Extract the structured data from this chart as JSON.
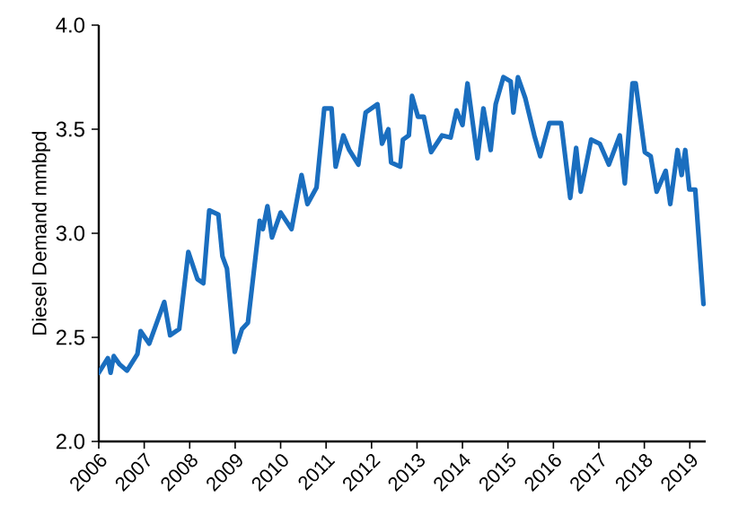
{
  "chart_data": {
    "type": "line",
    "ylabel": "Diesel Demand mmbpd",
    "x": [
      2006.0,
      2006.2,
      2006.26,
      2006.33,
      2006.46,
      2006.62,
      2006.85,
      2006.92,
      2007.11,
      2007.44,
      2007.57,
      2007.77,
      2007.97,
      2008.17,
      2008.3,
      2008.43,
      2008.63,
      2008.72,
      2008.82,
      2008.99,
      2009.15,
      2009.28,
      2009.54,
      2009.61,
      2009.71,
      2009.81,
      2010.0,
      2010.24,
      2010.46,
      2010.59,
      2010.79,
      2010.96,
      2011.12,
      2011.21,
      2011.38,
      2011.51,
      2011.71,
      2011.87,
      2012.13,
      2012.23,
      2012.37,
      2012.43,
      2012.63,
      2012.69,
      2012.82,
      2012.89,
      2013.02,
      2013.15,
      2013.31,
      2013.55,
      2013.74,
      2013.87,
      2014.0,
      2014.11,
      2014.33,
      2014.46,
      2014.62,
      2014.73,
      2014.9,
      2015.06,
      2015.12,
      2015.22,
      2015.38,
      2015.58,
      2015.71,
      2015.91,
      2016.17,
      2016.37,
      2016.5,
      2016.6,
      2016.83,
      2017.02,
      2017.22,
      2017.46,
      2017.57,
      2017.74,
      2017.81,
      2018.01,
      2018.14,
      2018.27,
      2018.47,
      2018.57,
      2018.73,
      2018.82,
      2018.9,
      2018.99,
      2019.12,
      2019.3
    ],
    "values": [
      2.33,
      2.4,
      2.33,
      2.41,
      2.37,
      2.34,
      2.42,
      2.53,
      2.47,
      2.67,
      2.51,
      2.54,
      2.91,
      2.78,
      2.76,
      3.11,
      3.09,
      2.89,
      2.83,
      2.43,
      2.54,
      2.57,
      3.06,
      3.02,
      3.13,
      2.98,
      3.1,
      3.02,
      3.28,
      3.14,
      3.22,
      3.6,
      3.6,
      3.32,
      3.47,
      3.4,
      3.33,
      3.58,
      3.62,
      3.43,
      3.5,
      3.34,
      3.32,
      3.45,
      3.47,
      3.66,
      3.56,
      3.56,
      3.39,
      3.47,
      3.46,
      3.59,
      3.52,
      3.72,
      3.36,
      3.6,
      3.4,
      3.62,
      3.75,
      3.73,
      3.58,
      3.75,
      3.65,
      3.47,
      3.37,
      3.53,
      3.53,
      3.17,
      3.41,
      3.2,
      3.45,
      3.43,
      3.33,
      3.47,
      3.24,
      3.72,
      3.72,
      3.39,
      3.37,
      3.2,
      3.3,
      3.14,
      3.4,
      3.28,
      3.4,
      3.21,
      3.21,
      2.66
    ],
    "color": "#1a6ebf",
    "xlim": [
      2006,
      2019.35
    ],
    "ylim": [
      2.0,
      4.0
    ],
    "xticks": [
      2006,
      2007,
      2008,
      2009,
      2010,
      2011,
      2012,
      2013,
      2014,
      2015,
      2016,
      2017,
      2018,
      2019
    ],
    "yticks": [
      {
        "value": 2.0,
        "label": "2.0"
      },
      {
        "value": 2.5,
        "label": "2.5"
      },
      {
        "value": 3.0,
        "label": "3.0"
      },
      {
        "value": 3.5,
        "label": "3.5"
      },
      {
        "value": 4.0,
        "label": "4.0"
      }
    ],
    "grid": false,
    "marker": "none",
    "line_style": "solid"
  }
}
